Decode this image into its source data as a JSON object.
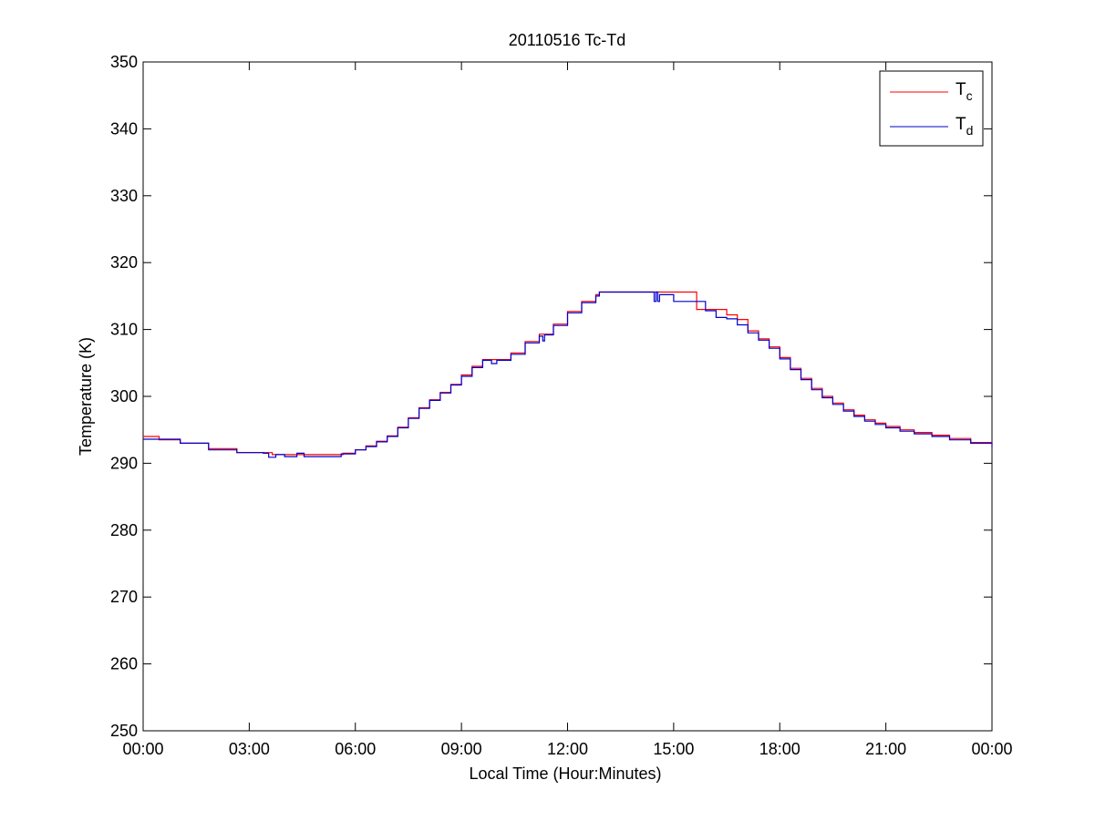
{
  "chart_data": {
    "type": "line",
    "title": "20110516 Tc-Td",
    "xlabel": "Local Time (Hour:Minutes)",
    "ylabel": "Temperature (K)",
    "xlim": [
      0,
      24
    ],
    "ylim": [
      250,
      350
    ],
    "x_ticks": [
      "00:00",
      "03:00",
      "06:00",
      "09:00",
      "12:00",
      "15:00",
      "18:00",
      "21:00",
      "00:00"
    ],
    "y_ticks": [
      250,
      260,
      270,
      280,
      290,
      300,
      310,
      320,
      330,
      340,
      350
    ],
    "grid": false,
    "legend_position": "top-right",
    "x_units": "hours since 00:00",
    "series": [
      {
        "name": "T",
        "subscript": "c",
        "color": "#ff0000",
        "x": [
          0,
          0.4,
          0.45,
          1.0,
          1.05,
          1.8,
          1.85,
          2.6,
          2.65,
          3.6,
          3.65,
          4.3,
          4.35,
          5.6,
          5.65,
          6.0,
          6.3,
          6.6,
          6.9,
          7.2,
          7.5,
          7.8,
          8.1,
          8.4,
          8.7,
          9.0,
          9.3,
          9.6,
          10.0,
          10.4,
          10.8,
          11.2,
          11.6,
          12.0,
          12.4,
          12.8,
          12.9,
          15.6,
          15.65,
          16.2,
          16.5,
          16.8,
          17.1,
          17.4,
          17.7,
          18.0,
          18.3,
          18.6,
          18.9,
          19.2,
          19.5,
          19.8,
          20.1,
          20.4,
          20.7,
          21.0,
          21.4,
          21.8,
          22.3,
          22.8,
          23.4,
          24.0
        ],
        "y": [
          294,
          294,
          293.5,
          293.5,
          293,
          293,
          292.2,
          292.2,
          291.6,
          291.6,
          291.3,
          291.3,
          291.3,
          291.3,
          291.5,
          292,
          292.6,
          293.3,
          294.1,
          295.4,
          296.8,
          298.3,
          299.5,
          300.6,
          301.8,
          303.2,
          304.5,
          305.5,
          305.5,
          306.5,
          308.2,
          309.3,
          310.8,
          312.7,
          314.2,
          315.2,
          315.6,
          315.6,
          313,
          313,
          312.2,
          311.5,
          309.8,
          308.6,
          307.4,
          305.8,
          304.2,
          302.7,
          301.2,
          300,
          299,
          298,
          297.2,
          296.5,
          296,
          295.5,
          295,
          294.6,
          294.2,
          293.7,
          293.1,
          292.9
        ]
      },
      {
        "name": "T",
        "subscript": "d",
        "color": "#0000cc",
        "x": [
          0,
          0.4,
          0.45,
          1.0,
          1.05,
          1.8,
          1.85,
          2.6,
          2.65,
          3.4,
          3.5,
          3.55,
          3.7,
          3.75,
          4.0,
          4.3,
          4.35,
          4.5,
          4.55,
          5.6,
          5.65,
          6.0,
          6.3,
          6.6,
          6.9,
          7.2,
          7.5,
          7.8,
          8.1,
          8.4,
          8.7,
          9.0,
          9.3,
          9.6,
          9.8,
          9.85,
          10.0,
          10.4,
          10.8,
          11.2,
          11.3,
          11.35,
          11.6,
          12.0,
          12.4,
          12.8,
          12.9,
          14.4,
          14.45,
          14.5,
          14.55,
          14.6,
          15.0,
          15.5,
          15.9,
          16.2,
          16.5,
          16.8,
          17.1,
          17.4,
          17.7,
          18.0,
          18.3,
          18.6,
          18.9,
          19.2,
          19.5,
          19.8,
          20.1,
          20.4,
          20.7,
          21.0,
          21.4,
          21.8,
          22.3,
          22.8,
          23.4,
          23.95,
          24.0
        ],
        "y": [
          293.6,
          293.6,
          293.6,
          293.6,
          293,
          293,
          292,
          292,
          291.6,
          291.5,
          291.5,
          290.9,
          290.9,
          291.3,
          291,
          291,
          291.5,
          291.5,
          291,
          291.4,
          291.4,
          292,
          292.5,
          293.2,
          294,
          295.3,
          296.7,
          298.2,
          299.4,
          300.5,
          301.7,
          303,
          304.3,
          305.4,
          305.4,
          304.9,
          305.4,
          306.3,
          308,
          309,
          308.3,
          309.2,
          310.6,
          312.5,
          314,
          315,
          315.6,
          315.6,
          314.2,
          315.6,
          314.2,
          315.2,
          314.2,
          314.2,
          312.8,
          311.8,
          311.6,
          310.7,
          309.5,
          308.4,
          307.2,
          305.6,
          304,
          302.5,
          301,
          299.8,
          298.8,
          297.8,
          297,
          296.3,
          295.8,
          295.3,
          294.8,
          294.4,
          294,
          293.5,
          293,
          293,
          292.4
        ]
      }
    ]
  }
}
